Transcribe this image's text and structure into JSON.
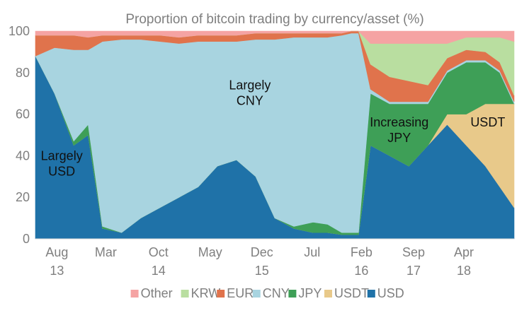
{
  "chart_data": {
    "type": "area",
    "stacked": true,
    "title": "Proportion of bitcoin trading by currency/asset (%)",
    "xlabel": "",
    "ylabel": "",
    "ylim": [
      0,
      100
    ],
    "yticks": [
      "0",
      "20",
      "40",
      "60",
      "80",
      "100"
    ],
    "grid": false,
    "legend_position": "bottom",
    "x_ticks": [
      {
        "top": "Aug",
        "bottom": "13",
        "t": 0.045
      },
      {
        "top": "Mar",
        "bottom": "",
        "t": 0.147
      },
      {
        "top": "Oct",
        "bottom": "14",
        "t": 0.257
      },
      {
        "top": "May",
        "bottom": "",
        "t": 0.365
      },
      {
        "top": "Dec",
        "bottom": "15",
        "t": 0.473
      },
      {
        "top": "Jul",
        "bottom": "",
        "t": 0.578
      },
      {
        "top": "Feb",
        "bottom": "16",
        "t": 0.681
      },
      {
        "top": "Sep",
        "bottom": "17",
        "t": 0.79
      },
      {
        "top": "Apr",
        "bottom": "18",
        "t": 0.895
      }
    ],
    "x": [
      0,
      0.04,
      0.08,
      0.11,
      0.14,
      0.18,
      0.22,
      0.26,
      0.3,
      0.34,
      0.38,
      0.42,
      0.46,
      0.5,
      0.54,
      0.58,
      0.61,
      0.64,
      0.66,
      0.675,
      0.7,
      0.74,
      0.78,
      0.82,
      0.86,
      0.9,
      0.94,
      0.97,
      1.0
    ],
    "series": [
      {
        "name": "USD",
        "color": "#1f72a8",
        "values": [
          88,
          70,
          45,
          50,
          5,
          3,
          10,
          15,
          20,
          25,
          35,
          38,
          30,
          10,
          5,
          3,
          3,
          2,
          2,
          2,
          45,
          40,
          35,
          45,
          55,
          45,
          35,
          25,
          15
        ]
      },
      {
        "name": "USDT",
        "color": "#e8c98a",
        "values": [
          0,
          0,
          0,
          0,
          0,
          0,
          0,
          0,
          0,
          0,
          0,
          0,
          0,
          0,
          0,
          0,
          0,
          0,
          0,
          0,
          0,
          0,
          0,
          0,
          5,
          15,
          30,
          40,
          50
        ]
      },
      {
        "name": "JPY",
        "color": "#3e9f57",
        "values": [
          0,
          0,
          2,
          5,
          1,
          0,
          0,
          0,
          0,
          0,
          0,
          0,
          0,
          0,
          1,
          5,
          4,
          1,
          1,
          1,
          25,
          25,
          30,
          20,
          20,
          25,
          20,
          15,
          0
        ]
      },
      {
        "name": "CNY",
        "color": "#a8d4e0",
        "values": [
          0,
          22,
          44,
          36,
          89,
          93,
          86,
          80,
          74,
          70,
          60,
          57,
          66,
          86,
          91,
          89,
          90,
          95,
          96,
          96,
          2,
          1,
          1,
          1,
          1,
          1,
          1,
          1,
          1
        ]
      },
      {
        "name": "EUR",
        "color": "#e0734c",
        "values": [
          10,
          6,
          7,
          6,
          3,
          2,
          2,
          3,
          3,
          3,
          3,
          3,
          3,
          3,
          2,
          2,
          2,
          1,
          1,
          1,
          12,
          12,
          10,
          8,
          6,
          5,
          4,
          4,
          3
        ]
      },
      {
        "name": "KRW",
        "color": "#b9dea0",
        "values": [
          0,
          0,
          0,
          0,
          0,
          0,
          0,
          0,
          0,
          0,
          0,
          0,
          0,
          0,
          0,
          0,
          0,
          0,
          0,
          0,
          10,
          16,
          18,
          20,
          7,
          6,
          7,
          12,
          26
        ]
      },
      {
        "name": "Other",
        "color": "#f5a3a3",
        "values": [
          2,
          2,
          2,
          3,
          2,
          2,
          2,
          2,
          3,
          2,
          2,
          2,
          1,
          1,
          1,
          1,
          1,
          1,
          0,
          0,
          6,
          6,
          6,
          6,
          6,
          3,
          3,
          3,
          5
        ]
      }
    ],
    "legend": [
      {
        "name": "Other",
        "color": "#f5a3a3"
      },
      {
        "name": "KRW",
        "color": "#b9dea0"
      },
      {
        "name": "EUR",
        "color": "#e0734c"
      },
      {
        "name": "CNY",
        "color": "#a8d4e0"
      },
      {
        "name": "JPY",
        "color": "#3e9f57"
      },
      {
        "name": "USDT",
        "color": "#e8c98a"
      },
      {
        "name": "USD",
        "color": "#1f72a8"
      }
    ],
    "annotations": [
      {
        "lines": [
          "Largely",
          "USD"
        ],
        "x": 0.055,
        "y": 38
      },
      {
        "lines": [
          "Largely",
          "CNY"
        ],
        "x": 0.448,
        "y": 72
      },
      {
        "lines": [
          "Increasing",
          "JPY"
        ],
        "x": 0.76,
        "y": 54
      },
      {
        "lines": [
          "USDT"
        ],
        "x": 0.945,
        "y": 54
      }
    ]
  }
}
